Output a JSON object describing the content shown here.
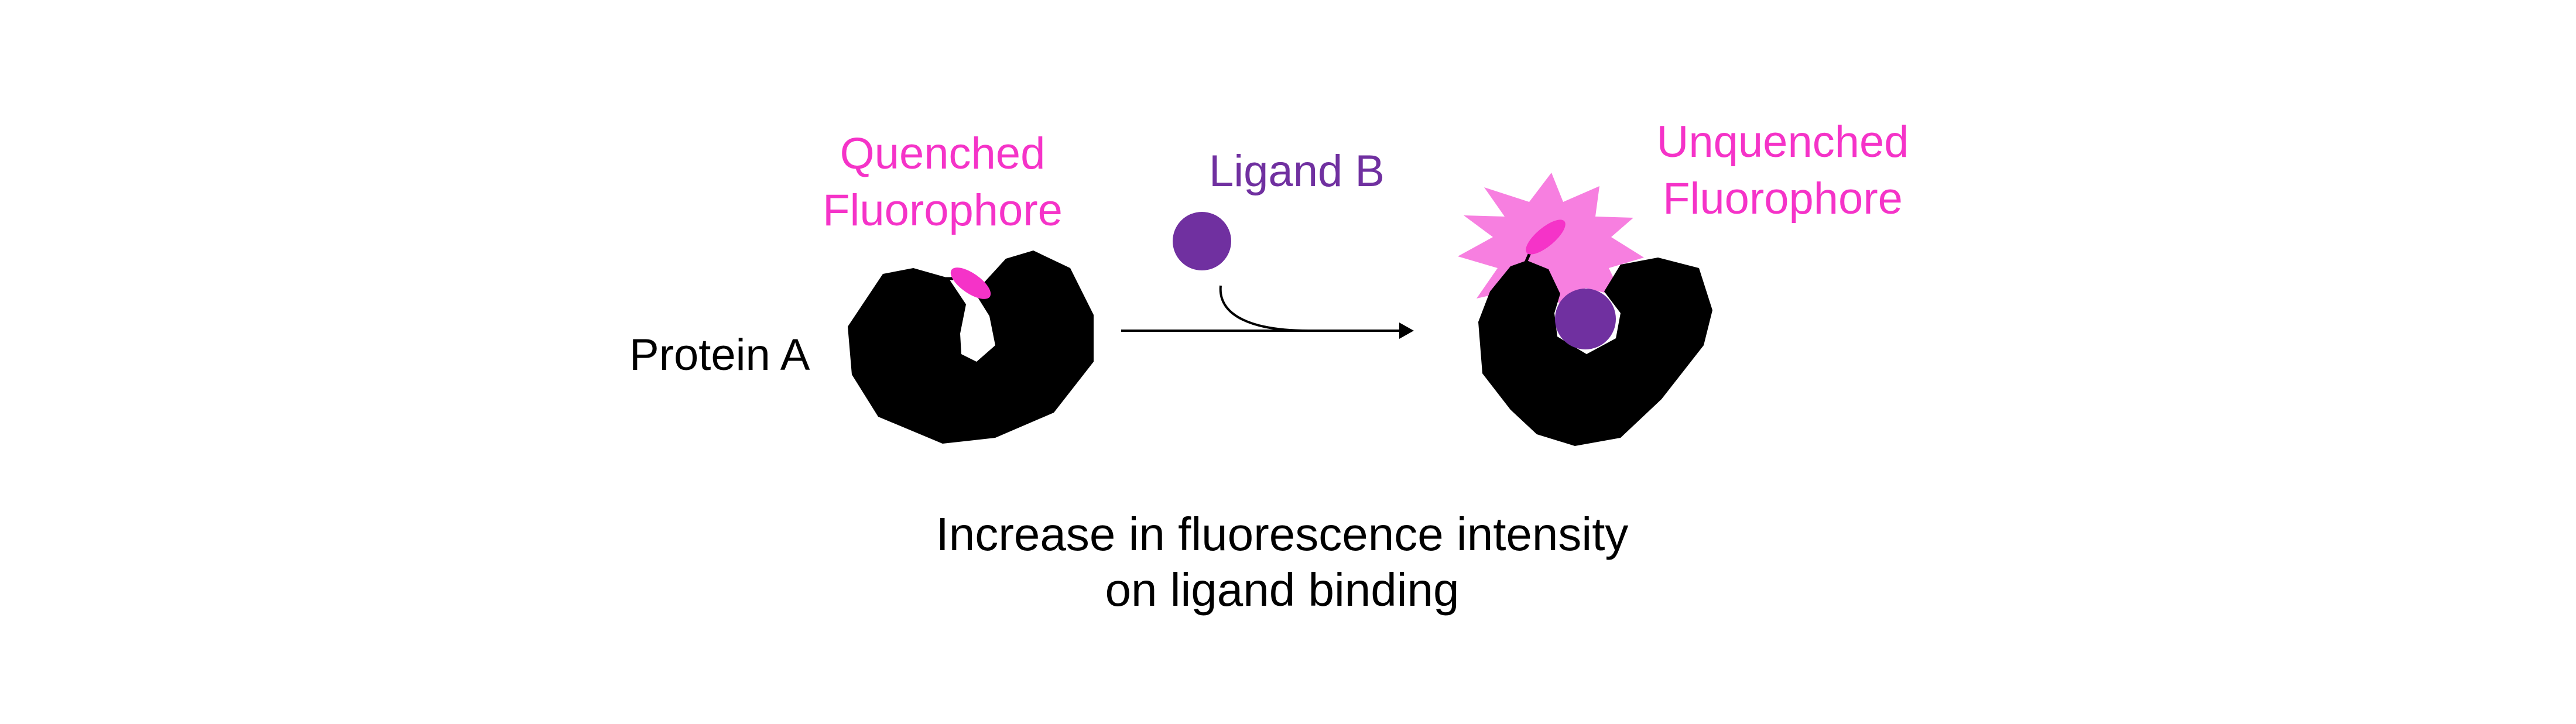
{
  "labels": {
    "quenched_line1": "Quenched",
    "quenched_line2": "Fluorophore",
    "protein": "Protein A",
    "ligand": "Ligand B",
    "unquenched_line1": "Unquenched",
    "unquenched_line2": "Fluorophore"
  },
  "caption": {
    "line1": "Increase in fluorescence intensity",
    "line2": "on ligand binding"
  },
  "colors": {
    "fluorophore": "#f533c8",
    "glow": "#f77fe0",
    "ligand": "#7030a0",
    "protein": "#000000",
    "text": "#000000"
  }
}
